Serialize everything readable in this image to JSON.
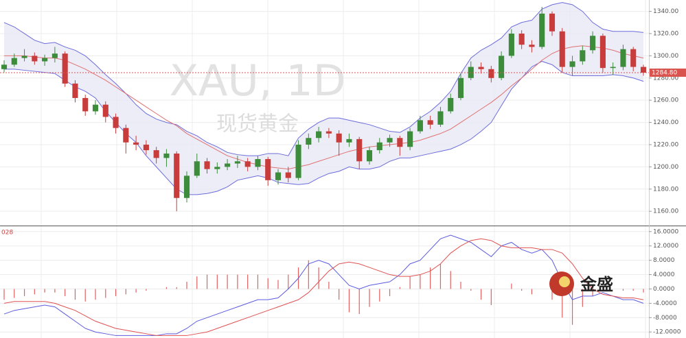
{
  "chart_data": [
    {
      "type": "candlestick",
      "title": "XAU, 1D",
      "subtitle": "现货黄金",
      "ylim": [
        1149,
        1349
      ],
      "yticks": [
        {
          "value": 1340,
          "label": "1340.00"
        },
        {
          "value": 1320,
          "label": "1320.00"
        },
        {
          "value": 1300,
          "label": "1300.00"
        },
        {
          "value": 1280,
          "label": "1280.00"
        },
        {
          "value": 1260,
          "label": "1260.00"
        },
        {
          "value": 1240,
          "label": "1240.00"
        },
        {
          "value": 1220,
          "label": "1220.00"
        },
        {
          "value": 1200,
          "label": "1200.00"
        },
        {
          "value": 1180,
          "label": "1180.00"
        },
        {
          "value": 1160,
          "label": "1160.00"
        }
      ],
      "last_price": {
        "value": 1284.8,
        "label": "1284.80"
      },
      "up_color": "#3c8c3c",
      "down_color": "#c83c3c",
      "last_color": "#d9534f",
      "open": [
        1288,
        1292,
        1298,
        1300,
        1295,
        1298,
        1302,
        1275,
        1262,
        1250,
        1256,
        1245,
        1235,
        1222,
        1220,
        1215,
        1208,
        1212,
        1172,
        1192,
        1205,
        1198,
        1200,
        1203,
        1205,
        1200,
        1207,
        1188,
        1195,
        1190,
        1220,
        1226,
        1232,
        1230,
        1222,
        1225,
        1205,
        1215,
        1222,
        1226,
        1218,
        1232,
        1242,
        1238,
        1250,
        1262,
        1280,
        1290,
        1288,
        1280,
        1300,
        1320,
        1310,
        1308,
        1338,
        1322,
        1290,
        1295,
        1305,
        1318,
        1289,
        1290,
        1306,
        1290
      ],
      "high": [
        1296,
        1302,
        1306,
        1303,
        1301,
        1308,
        1304,
        1278,
        1265,
        1260,
        1259,
        1248,
        1238,
        1228,
        1224,
        1218,
        1216,
        1214,
        1196,
        1212,
        1208,
        1204,
        1207,
        1210,
        1208,
        1210,
        1209,
        1198,
        1200,
        1224,
        1230,
        1236,
        1235,
        1233,
        1230,
        1227,
        1218,
        1226,
        1229,
        1228,
        1235,
        1246,
        1246,
        1254,
        1266,
        1284,
        1295,
        1294,
        1291,
        1304,
        1324,
        1323,
        1314,
        1344,
        1340,
        1325,
        1300,
        1309,
        1322,
        1320,
        1294,
        1310,
        1308,
        1292
      ],
      "low": [
        1285,
        1290,
        1295,
        1292,
        1291,
        1294,
        1272,
        1258,
        1246,
        1247,
        1240,
        1230,
        1212,
        1215,
        1211,
        1203,
        1200,
        1160,
        1168,
        1190,
        1194,
        1194,
        1197,
        1199,
        1196,
        1197,
        1183,
        1184,
        1186,
        1188,
        1216,
        1222,
        1226,
        1210,
        1218,
        1198,
        1202,
        1212,
        1218,
        1210,
        1215,
        1230,
        1234,
        1236,
        1248,
        1260,
        1278,
        1284,
        1276,
        1278,
        1298,
        1306,
        1303,
        1306,
        1318,
        1285,
        1282,
        1292,
        1302,
        1285,
        1283,
        1287,
        1286,
        1282
      ],
      "close": [
        1292,
        1298,
        1300,
        1295,
        1298,
        1302,
        1275,
        1262,
        1250,
        1256,
        1245,
        1235,
        1222,
        1220,
        1215,
        1208,
        1212,
        1172,
        1192,
        1205,
        1198,
        1200,
        1203,
        1205,
        1200,
        1207,
        1188,
        1195,
        1190,
        1220,
        1226,
        1232,
        1230,
        1222,
        1225,
        1205,
        1215,
        1222,
        1226,
        1218,
        1232,
        1242,
        1238,
        1250,
        1262,
        1280,
        1290,
        1288,
        1280,
        1300,
        1320,
        1310,
        1308,
        1338,
        1322,
        1290,
        1295,
        1305,
        1318,
        1289,
        1290,
        1306,
        1290,
        1284.8
      ],
      "bands": {
        "band_color": "#6b6bdc",
        "fill_color": "#e8e8f6",
        "middle_color": "#e07070",
        "upper": [
          1330,
          1326,
          1320,
          1314,
          1311,
          1312,
          1308,
          1305,
          1300,
          1292,
          1283,
          1275,
          1266,
          1256,
          1248,
          1243,
          1240,
          1238,
          1232,
          1228,
          1222,
          1218,
          1213,
          1211,
          1210,
          1210,
          1212,
          1212,
          1210,
          1226,
          1234,
          1240,
          1244,
          1244,
          1242,
          1240,
          1238,
          1235,
          1232,
          1231,
          1236,
          1244,
          1250,
          1258,
          1268,
          1284,
          1298,
          1305,
          1310,
          1316,
          1326,
          1330,
          1332,
          1342,
          1346,
          1348,
          1346,
          1340,
          1330,
          1324,
          1322,
          1322,
          1322,
          1321
        ],
        "middle": [
          1300,
          1300,
          1300,
          1299,
          1298,
          1298,
          1296,
          1292,
          1288,
          1283,
          1278,
          1272,
          1266,
          1260,
          1254,
          1248,
          1242,
          1237,
          1230,
          1225,
          1220,
          1215,
          1210,
          1207,
          1204,
          1202,
          1200,
          1199,
          1198,
          1200,
          1202,
          1205,
          1208,
          1211,
          1214,
          1216,
          1218,
          1219,
          1220,
          1221,
          1222,
          1224,
          1227,
          1230,
          1234,
          1240,
          1246,
          1252,
          1258,
          1265,
          1273,
          1280,
          1288,
          1296,
          1302,
          1306,
          1308,
          1309,
          1308,
          1307,
          1305,
          1302,
          1300,
          1298
        ],
        "lower": [
          1288,
          1288,
          1287,
          1286,
          1285,
          1284,
          1278,
          1272,
          1268,
          1262,
          1250,
          1240,
          1230,
          1222,
          1210,
          1200,
          1190,
          1180,
          1175,
          1175,
          1176,
          1178,
          1182,
          1188,
          1190,
          1192,
          1190,
          1186,
          1185,
          1184,
          1185,
          1190,
          1194,
          1196,
          1200,
          1198,
          1198,
          1200,
          1205,
          1208,
          1208,
          1210,
          1212,
          1214,
          1216,
          1220,
          1225,
          1232,
          1240,
          1255,
          1270,
          1280,
          1290,
          1295,
          1292,
          1285,
          1282,
          1282,
          1282,
          1282,
          1283,
          1282,
          1280,
          1277
        ]
      }
    },
    {
      "type": "macd",
      "label": "028",
      "ylim": [
        -13.3,
        17.3
      ],
      "yticks": [
        {
          "value": 16,
          "label": "16.0000"
        },
        {
          "value": 12,
          "label": "12.0000"
        },
        {
          "value": 8,
          "label": "8.0000"
        },
        {
          "value": 4,
          "label": "4.0000"
        },
        {
          "value": 0,
          "label": "0.0000"
        },
        {
          "value": -4,
          "label": "-4.0000"
        },
        {
          "value": -8,
          "label": "-8.0000"
        },
        {
          "value": -12,
          "label": "-12.0000"
        }
      ],
      "histogram_color": "#e06060",
      "macd_color": "#5a5ae0",
      "signal_color": "#e05050",
      "histogram": [
        -3,
        -2.5,
        -2,
        -1.5,
        -1,
        -1,
        -2,
        -3,
        -3.5,
        -3,
        -2.5,
        -2,
        -1.5,
        -1,
        -0.5,
        0,
        0.5,
        0.5,
        2,
        3.5,
        4,
        4,
        4,
        4,
        4,
        4,
        3,
        2.5,
        4,
        6,
        8,
        6,
        2,
        -3,
        -6.5,
        -7,
        -5,
        -3.5,
        -2,
        0.5,
        3.5,
        4,
        6,
        7,
        5,
        2,
        -0.5,
        -3,
        -4.5,
        0,
        1.5,
        -0.5,
        -1.5,
        0,
        -3,
        -8,
        -10,
        -5,
        -2,
        0.5,
        0,
        -0.5,
        -0.5,
        -1
      ],
      "macd": [
        -7,
        -6,
        -5.5,
        -5,
        -4.5,
        -5,
        -7,
        -9,
        -11,
        -12,
        -12.5,
        -13,
        -13,
        -13,
        -13,
        -13,
        -12.5,
        -12.5,
        -11,
        -9,
        -8,
        -7,
        -6,
        -5,
        -4,
        -3,
        -3,
        -2.5,
        0,
        3,
        7,
        8,
        7,
        4,
        1,
        0,
        1,
        1.5,
        2,
        4,
        7,
        8,
        11,
        14,
        15,
        14,
        13,
        11,
        9,
        12,
        13,
        11,
        10,
        11,
        8,
        2,
        -3,
        -2,
        -2,
        -1,
        -2,
        -3,
        -3,
        -4
      ],
      "signal": [
        -4,
        -3.5,
        -3.5,
        -3.5,
        -3.5,
        -4,
        -5,
        -6,
        -7.5,
        -9,
        -10,
        -11,
        -11.5,
        -12,
        -12.5,
        -13,
        -13,
        -13,
        -13,
        -12.5,
        -12,
        -11,
        -10,
        -9,
        -8,
        -7,
        -6,
        -5,
        -4,
        -3,
        -1,
        2,
        5,
        7,
        7.5,
        7,
        6,
        5,
        4,
        3.5,
        3.5,
        4,
        5,
        7,
        10,
        12,
        13.5,
        14,
        13.5,
        12,
        11.5,
        11.5,
        11.5,
        11,
        11,
        10,
        7,
        3,
        0,
        -1.5,
        -2,
        -2.5,
        -2.5,
        -3
      ]
    }
  ],
  "logo": "金盛"
}
